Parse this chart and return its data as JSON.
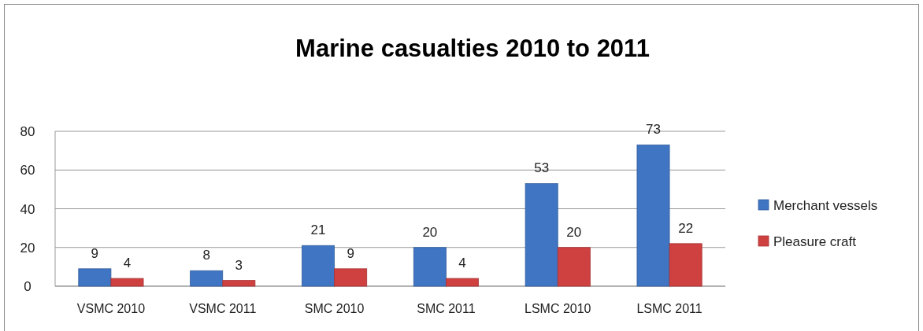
{
  "chart_data": {
    "type": "bar",
    "title": "Marine casualties 2010 to 2011",
    "categories": [
      "VSMC 2010",
      "VSMC 2011",
      "SMC 2010",
      "SMC 2011",
      "LSMC 2010",
      "LSMC 2011"
    ],
    "series": [
      {
        "name": "Merchant vessels",
        "color": "#3f75c2",
        "values": [
          9,
          8,
          21,
          20,
          53,
          73
        ]
      },
      {
        "name": "Pleasure craft",
        "color": "#cf4040",
        "values": [
          4,
          3,
          9,
          4,
          20,
          22
        ]
      }
    ],
    "ylim": [
      0,
      80
    ],
    "yticks": [
      0,
      20,
      40,
      60,
      80
    ],
    "grid": "y",
    "legend": "right",
    "data_labels": true
  }
}
